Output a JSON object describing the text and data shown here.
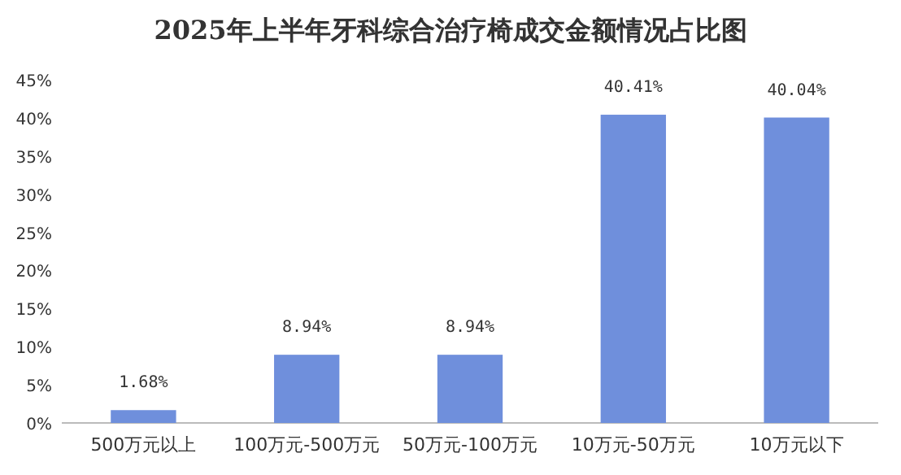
{
  "chart_data": {
    "type": "bar",
    "title": "2025年上半年牙科综合治疗椅成交金额情况占比图",
    "categories": [
      "500万元以上",
      "100万元-500万元",
      "50万元-100万元",
      "10万元-50万元",
      "10万元以下"
    ],
    "values": [
      1.68,
      8.94,
      8.94,
      40.41,
      40.04
    ],
    "value_labels": [
      "1.68%",
      "8.94%",
      "8.94%",
      "40.41%",
      "40.04%"
    ],
    "color": "#6f8fdc",
    "ylim": [
      0,
      45
    ],
    "yticks": [
      {
        "value": 0,
        "label": "0%"
      },
      {
        "value": 5,
        "label": "5%"
      },
      {
        "value": 10,
        "label": "10%"
      },
      {
        "value": 15,
        "label": "15%"
      },
      {
        "value": 20,
        "label": "20%"
      },
      {
        "value": 25,
        "label": "25%"
      },
      {
        "value": 30,
        "label": "30%"
      },
      {
        "value": 35,
        "label": "35%"
      },
      {
        "value": 40,
        "label": "40%"
      },
      {
        "value": 45,
        "label": "45%"
      }
    ],
    "grid": false
  }
}
